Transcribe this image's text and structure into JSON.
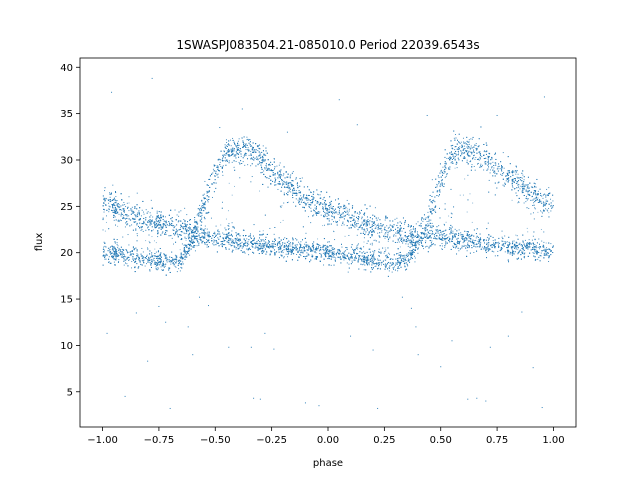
{
  "chart_data": {
    "type": "scatter",
    "title": "1SWASPJ083504.21-085010.0 Period 22039.6543s",
    "xlabel": "phase",
    "ylabel": "flux",
    "xlim": [
      -1.1,
      1.1
    ],
    "ylim": [
      1.2,
      41.0
    ],
    "xticks": [
      -1.0,
      -0.75,
      -0.5,
      -0.25,
      0.0,
      0.25,
      0.5,
      0.75,
      1.0
    ],
    "xtick_labels": [
      "−1.00",
      "−0.75",
      "−0.50",
      "−0.25",
      "0.00",
      "0.25",
      "0.50",
      "0.75",
      "1.00"
    ],
    "yticks": [
      5,
      10,
      15,
      20,
      25,
      30,
      35,
      40
    ],
    "ytick_labels": [
      "5",
      "10",
      "15",
      "20",
      "25",
      "30",
      "35",
      "40"
    ],
    "grid": false,
    "marker_color": "#1f77b4",
    "series": [
      {
        "phase": [
          -1.0,
          -0.95,
          -0.9,
          -0.85,
          -0.8,
          -0.75,
          -0.7,
          -0.65,
          -0.6,
          -0.55,
          -0.5,
          -0.45,
          -0.4,
          -0.35,
          -0.3,
          -0.25,
          -0.2,
          -0.15,
          -0.1,
          -0.05,
          0.0,
          0.05,
          0.1,
          0.15,
          0.2,
          0.25,
          0.3,
          0.35,
          0.4,
          0.45,
          0.5,
          0.55,
          0.6,
          0.65,
          0.7,
          0.75,
          0.8,
          0.85,
          0.9,
          0.95,
          1.0
        ],
        "flux_upper_branch": [
          25.3,
          24.8,
          24.3,
          23.9,
          23.5,
          23.2,
          22.8,
          22.5,
          22.2,
          25.0,
          28.5,
          30.8,
          31.0,
          31.2,
          30.2,
          28.8,
          27.8,
          26.8,
          25.9,
          25.2,
          24.6,
          24.1,
          23.7,
          23.3,
          22.9,
          22.5,
          22.3,
          22.0,
          21.9,
          24.0,
          28.0,
          30.9,
          31.1,
          31.2,
          30.3,
          29.0,
          28.3,
          27.5,
          26.5,
          26.0,
          25.3
        ],
        "flux_lower_branch": [
          20.2,
          19.9,
          19.6,
          19.4,
          19.2,
          19.1,
          19.0,
          19.2,
          21.5,
          21.8,
          21.6,
          21.4,
          21.2,
          21.0,
          20.9,
          20.7,
          20.6,
          20.4,
          20.3,
          20.1,
          20.0,
          19.8,
          19.6,
          19.4,
          19.2,
          19.0,
          18.9,
          19.1,
          21.2,
          21.8,
          21.7,
          21.5,
          21.3,
          21.1,
          20.9,
          20.8,
          20.6,
          20.5,
          20.4,
          20.3,
          20.2
        ]
      }
    ],
    "outliers": [
      [
        -0.98,
        11.3
      ],
      [
        -0.96,
        37.3
      ],
      [
        -0.9,
        4.5
      ],
      [
        -0.85,
        13.5
      ],
      [
        -0.8,
        8.3
      ],
      [
        -0.78,
        38.8
      ],
      [
        -0.75,
        14.2
      ],
      [
        -0.72,
        12.5
      ],
      [
        -0.7,
        3.2
      ],
      [
        -0.62,
        12.0
      ],
      [
        -0.6,
        9.0
      ],
      [
        -0.57,
        15.2
      ],
      [
        -0.53,
        14.3
      ],
      [
        -0.48,
        33.5
      ],
      [
        -0.44,
        9.8
      ],
      [
        -0.38,
        35.5
      ],
      [
        -0.34,
        9.8
      ],
      [
        -0.33,
        4.3
      ],
      [
        -0.3,
        4.2
      ],
      [
        -0.28,
        11.3
      ],
      [
        -0.24,
        9.6
      ],
      [
        -0.18,
        33.0
      ],
      [
        -0.1,
        3.8
      ],
      [
        -0.04,
        3.5
      ],
      [
        0.05,
        36.5
      ],
      [
        0.1,
        11.0
      ],
      [
        0.13,
        33.8
      ],
      [
        0.2,
        9.5
      ],
      [
        0.22,
        3.2
      ],
      [
        0.33,
        15.2
      ],
      [
        0.37,
        14.0
      ],
      [
        0.39,
        12.0
      ],
      [
        0.4,
        9.0
      ],
      [
        0.44,
        34.8
      ],
      [
        0.5,
        7.7
      ],
      [
        0.55,
        10.5
      ],
      [
        0.62,
        4.2
      ],
      [
        0.66,
        4.3
      ],
      [
        0.7,
        4.0
      ],
      [
        0.72,
        9.8
      ],
      [
        0.75,
        34.8
      ],
      [
        0.8,
        11.0
      ],
      [
        0.86,
        13.6
      ],
      [
        0.91,
        7.6
      ],
      [
        0.95,
        3.3
      ],
      [
        0.96,
        36.8
      ]
    ]
  }
}
